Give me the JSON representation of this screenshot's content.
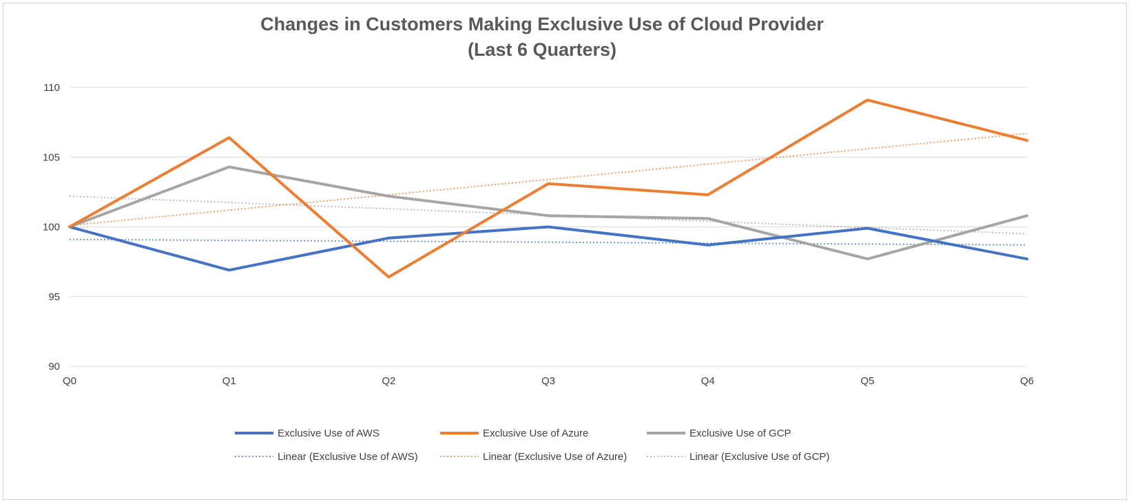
{
  "chart_data": {
    "type": "line",
    "title": "Changes in Customers Making Exclusive Use of Cloud Provider",
    "subtitle": "(Last 6 Quarters)",
    "xlabel": "",
    "ylabel": "",
    "categories": [
      "Q0",
      "Q1",
      "Q2",
      "Q3",
      "Q4",
      "Q5",
      "Q6"
    ],
    "ylim": [
      90,
      110
    ],
    "yticks": [
      "90",
      "95",
      "100",
      "105",
      "110"
    ],
    "grid": true,
    "legend_position": "bottom",
    "series": [
      {
        "name": "Exclusive Use of AWS",
        "color": "#4472C4",
        "values": [
          100.0,
          96.9,
          99.2,
          100.0,
          98.7,
          99.9,
          97.7
        ]
      },
      {
        "name": "Exclusive Use of Azure",
        "color": "#ED7D31",
        "values": [
          100.0,
          106.4,
          96.4,
          103.1,
          102.3,
          109.1,
          106.2
        ]
      },
      {
        "name": "Exclusive Use of GCP",
        "color": "#A5A5A5",
        "values": [
          100.0,
          104.3,
          102.2,
          100.8,
          100.6,
          97.7,
          100.8
        ]
      }
    ],
    "trendlines": [
      {
        "name": "Linear (Exclusive Use of AWS)",
        "color": "#4472C4",
        "start": 99.1,
        "end": 98.7
      },
      {
        "name": "Linear (Exclusive Use of Azure)",
        "color": "#ED7D31",
        "start": 100.1,
        "end": 106.7
      },
      {
        "name": "Linear (Exclusive Use of GCP)",
        "color": "#A5A5A5",
        "start": 102.2,
        "end": 99.5
      }
    ]
  }
}
